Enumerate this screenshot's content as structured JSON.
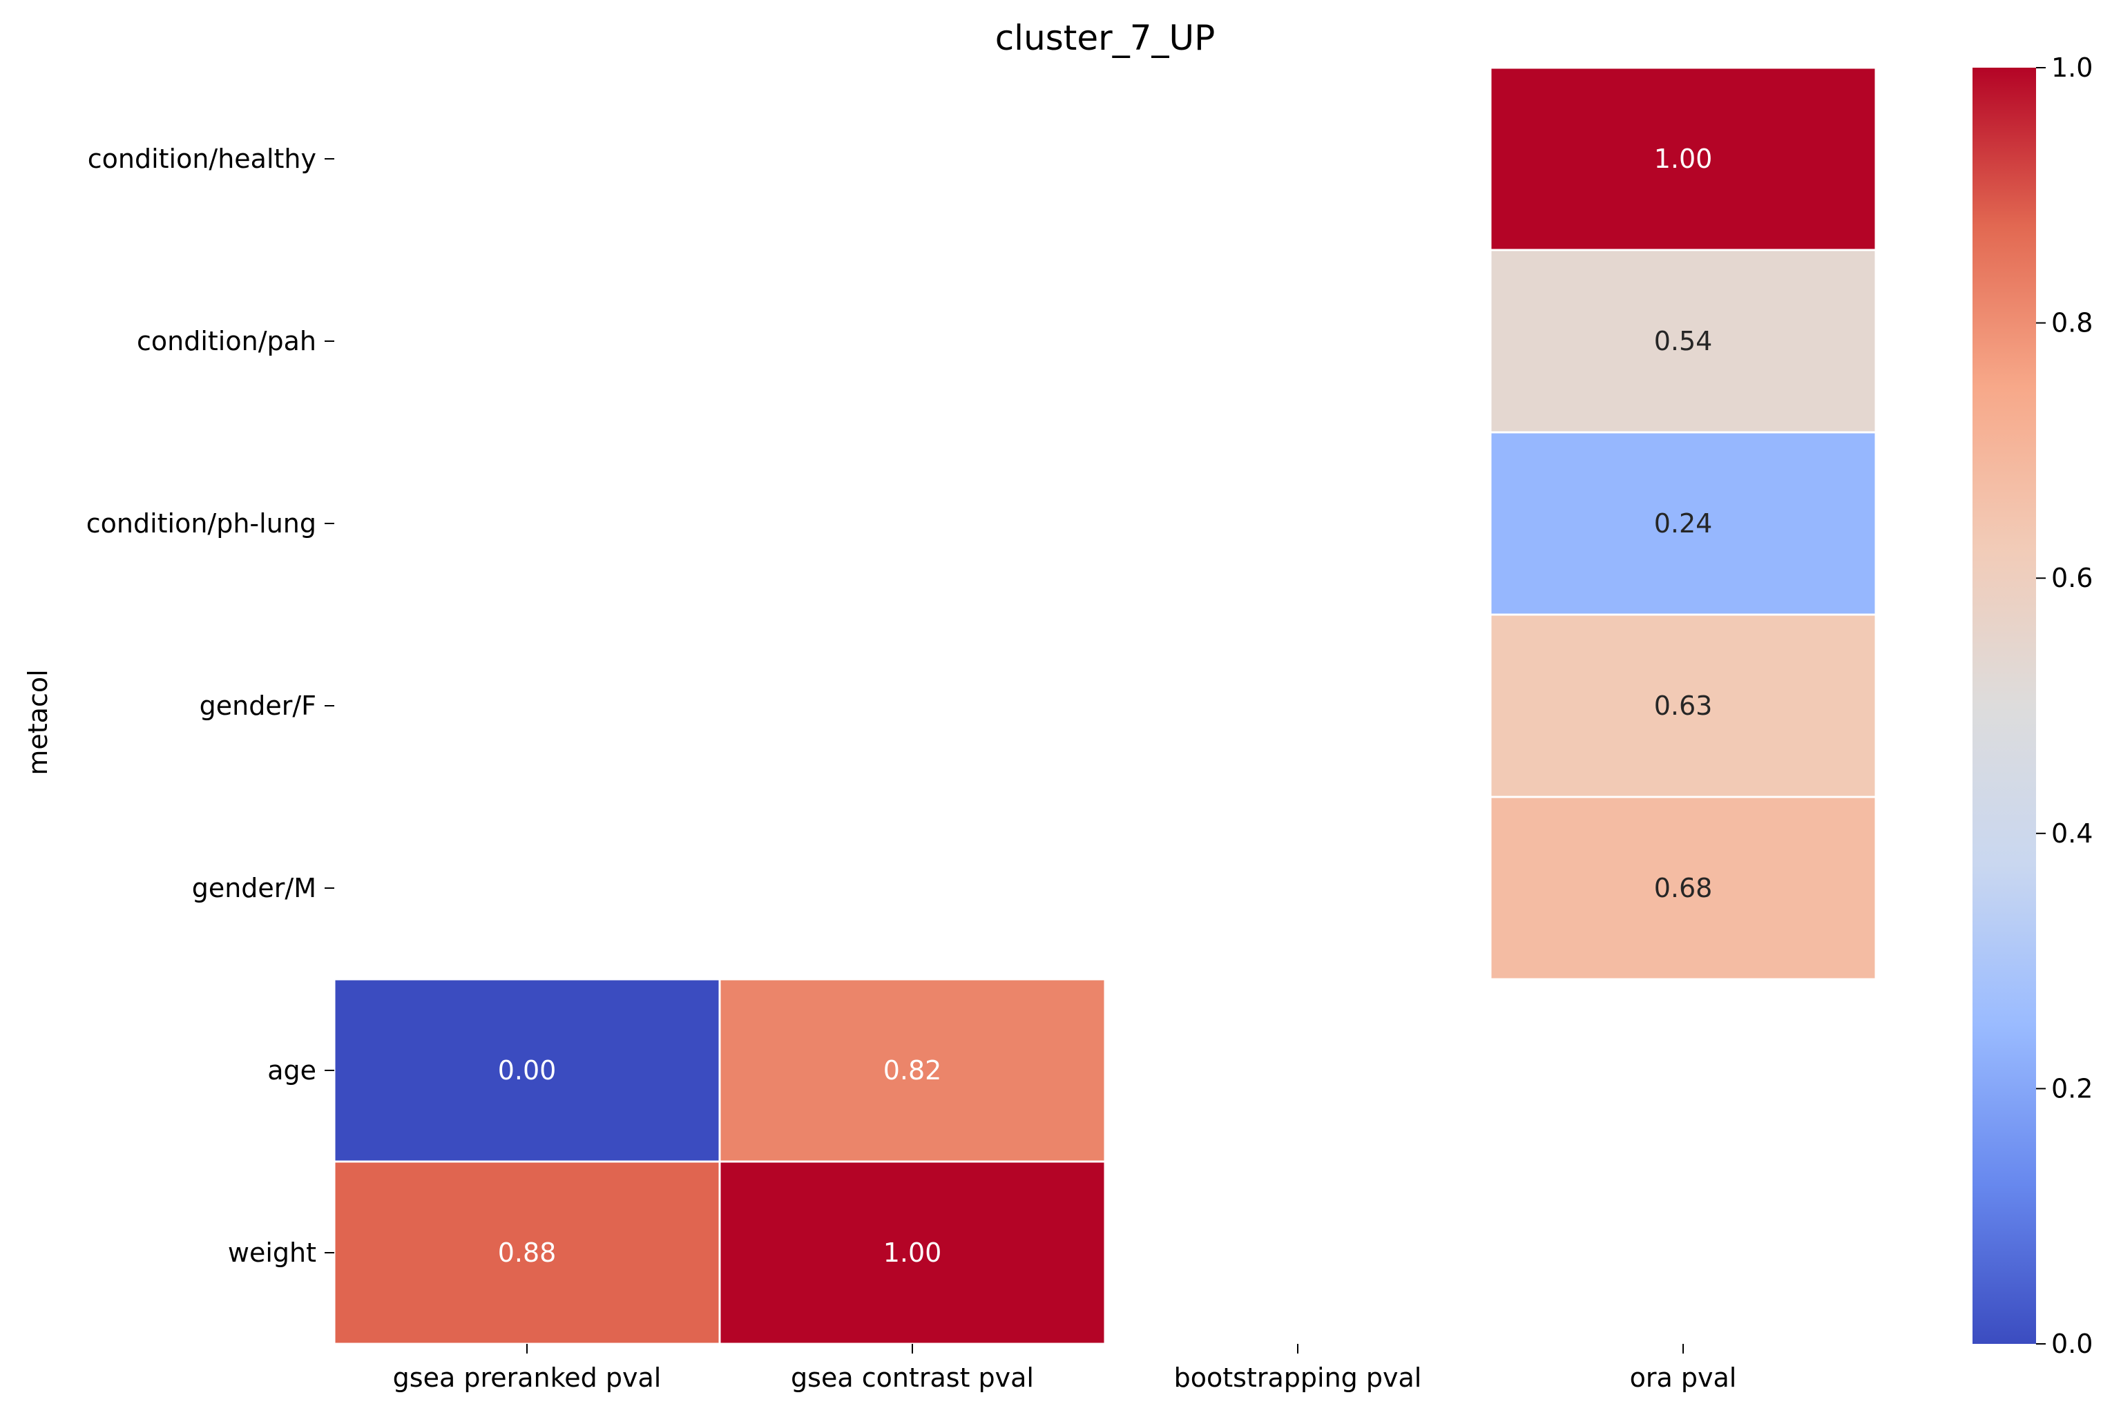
{
  "chart_data": {
    "type": "heatmap",
    "title": "cluster_7_UP",
    "ylabel": "metacol",
    "xlabel": "",
    "columns": [
      "gsea preranked pval",
      "gsea contrast pval",
      "bootstrapping pval",
      "ora pval"
    ],
    "rows": [
      "condition/healthy",
      "condition/pah",
      "condition/ph-lung",
      "gender/F",
      "gender/M",
      "age",
      "weight"
    ],
    "values": [
      [
        null,
        null,
        null,
        1.0
      ],
      [
        null,
        null,
        null,
        0.54
      ],
      [
        null,
        null,
        null,
        0.24
      ],
      [
        null,
        null,
        null,
        0.63
      ],
      [
        null,
        null,
        null,
        0.68
      ],
      [
        0.0,
        0.82,
        null,
        null
      ],
      [
        0.88,
        1.0,
        null,
        null
      ]
    ],
    "value_labels": [
      [
        null,
        null,
        null,
        "1.00"
      ],
      [
        null,
        null,
        null,
        "0.54"
      ],
      [
        null,
        null,
        null,
        "0.24"
      ],
      [
        null,
        null,
        null,
        "0.63"
      ],
      [
        null,
        null,
        null,
        "0.68"
      ],
      [
        "0.00",
        "0.82",
        null,
        null
      ],
      [
        "0.88",
        "1.00",
        null,
        null
      ]
    ],
    "colormap": "coolwarm",
    "colorbar": {
      "range": [
        0.0,
        1.0
      ],
      "ticks": [
        0.0,
        0.2,
        0.4,
        0.6,
        0.8,
        1.0
      ],
      "tick_labels": [
        "0.0",
        "0.2",
        "0.4",
        "0.6",
        "0.8",
        "1.0"
      ]
    },
    "colorbar_stops": [
      "#3b4cc0",
      "#6788ee",
      "#9abbff",
      "#c9d7f0",
      "#dddcdc",
      "#f2cbb7",
      "#f7a889",
      "#e26952",
      "#b40426"
    ]
  }
}
